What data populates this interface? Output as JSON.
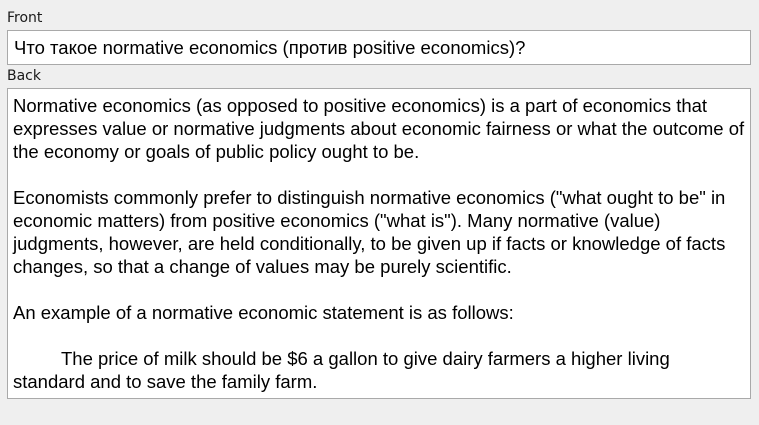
{
  "front": {
    "label": "Front",
    "value": "Что такое normative economics (против positive economics)?"
  },
  "back": {
    "label": "Back",
    "paragraphs": [
      "Normative economics (as opposed to positive economics) is a part of economics that expresses value or normative judgments about economic fairness or what the outcome of the economy or goals of public policy ought to be.",
      "Economists commonly prefer to distinguish normative economics (\"what ought to be\" in economic matters) from positive economics (\"what is\"). Many normative (value) judgments, however, are held conditionally, to be given up if facts or knowledge of facts changes, so that a change of values may be purely scientific.",
      "An example of a normative economic statement is as follows:",
      "The price of milk should be $6 a gallon to give dairy farmers a higher living standard and to save the family farm."
    ]
  }
}
